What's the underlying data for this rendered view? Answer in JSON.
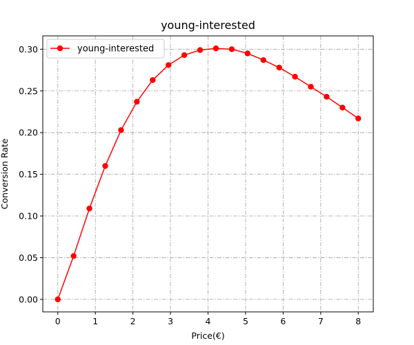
{
  "chart_data": {
    "type": "line",
    "title": "young-interested",
    "xlabel": "Price(€)",
    "ylabel": "Conversion Rate",
    "xlim": [
      -0.4,
      8.4
    ],
    "ylim": [
      -0.015,
      0.316
    ],
    "xticks": [
      0,
      1,
      2,
      3,
      4,
      5,
      6,
      7,
      8
    ],
    "yticks": [
      0.0,
      0.05,
      0.1,
      0.15,
      0.2,
      0.25,
      0.3
    ],
    "ytick_labels": [
      "0.00",
      "0.05",
      "0.10",
      "0.15",
      "0.20",
      "0.25",
      "0.30"
    ],
    "grid": true,
    "grid_style": "dash-dot",
    "legend_position": "top-left",
    "series": [
      {
        "name": "young-interested",
        "color": "#ff0000",
        "marker": "circle",
        "x": [
          0.0,
          0.421,
          0.842,
          1.263,
          1.684,
          2.105,
          2.526,
          2.947,
          3.368,
          3.789,
          4.211,
          4.632,
          5.053,
          5.474,
          5.895,
          6.316,
          6.737,
          7.158,
          7.579,
          8.0
        ],
        "y": [
          0.0,
          0.052,
          0.109,
          0.16,
          0.203,
          0.237,
          0.263,
          0.281,
          0.293,
          0.299,
          0.301,
          0.3,
          0.295,
          0.287,
          0.278,
          0.267,
          0.255,
          0.243,
          0.23,
          0.217
        ]
      }
    ]
  }
}
